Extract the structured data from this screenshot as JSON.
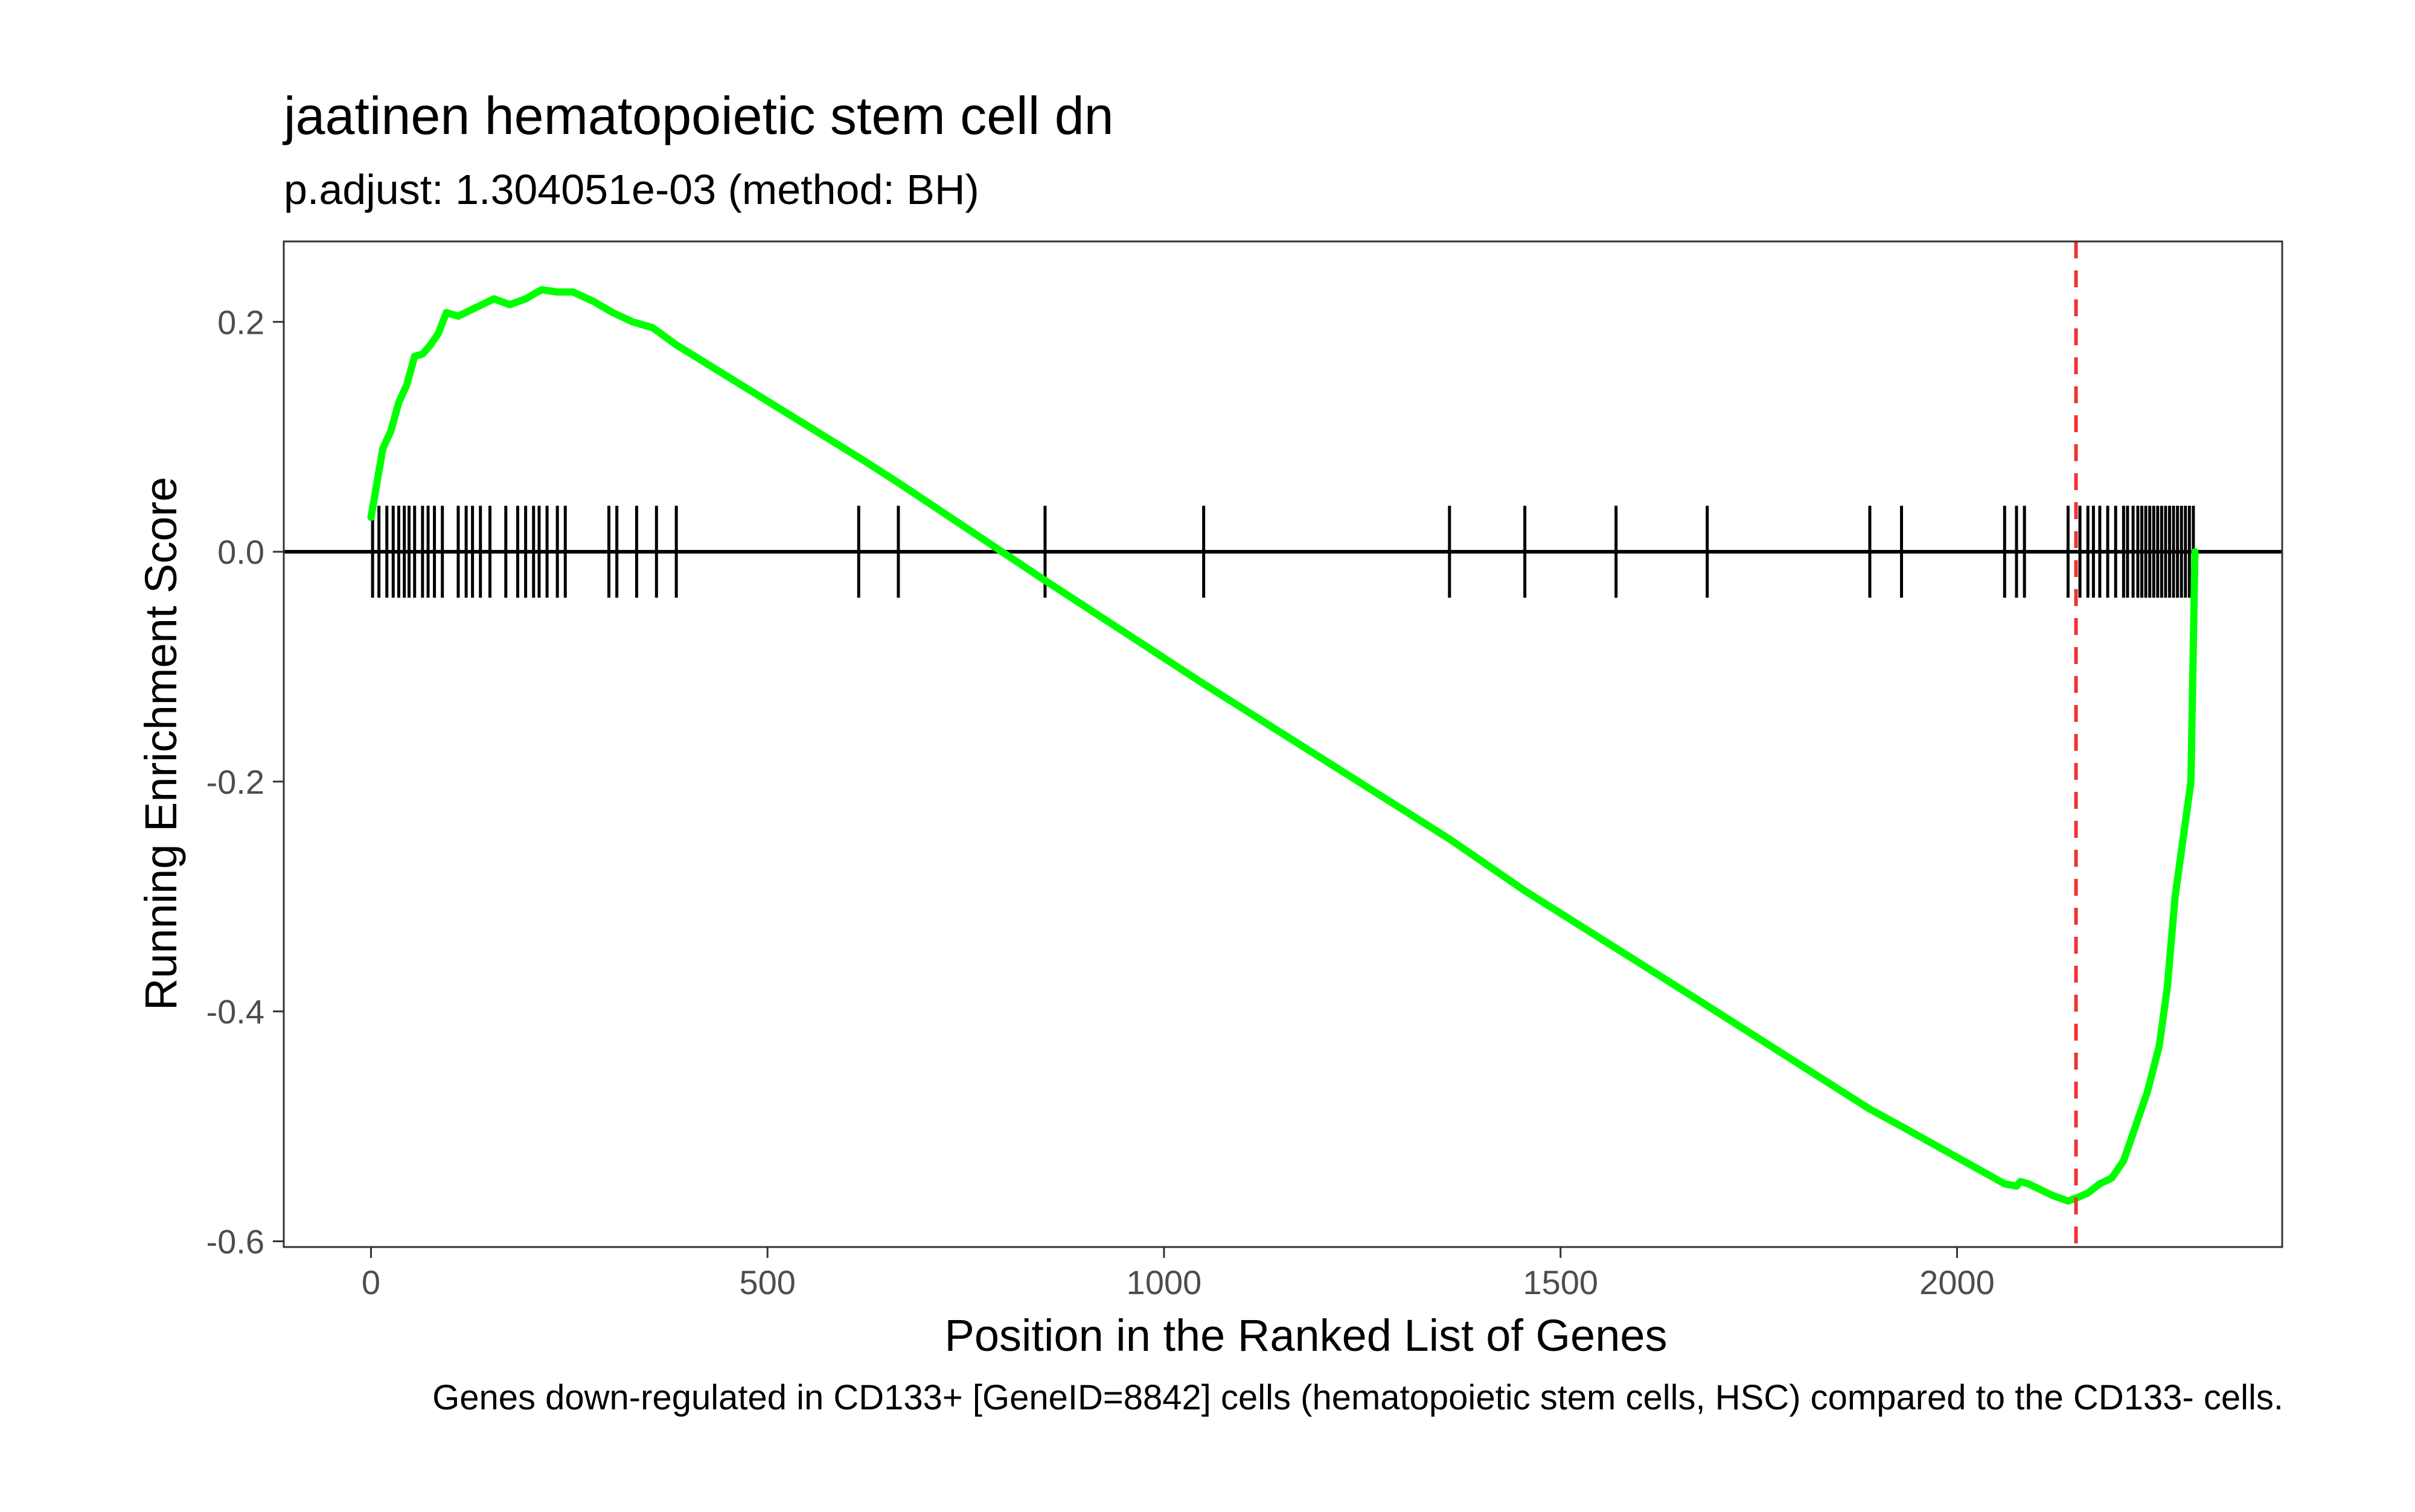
{
  "chart_data": {
    "type": "line",
    "title": "jaatinen hematopoietic stem cell dn",
    "subtitle": "p.adjust: 1.304051e-03 (method: BH)",
    "xlabel": "Position in the Ranked List of Genes",
    "ylabel": "Running Enrichment Score",
    "caption": "Genes down-regulated in CD133+ [GeneID=8842] cells (hematopoietic stem cells, HSC) compared to the CD133- cells.",
    "xlim": [
      -110,
      2410
    ],
    "ylim": [
      -0.605,
      0.27
    ],
    "x_ticks": [
      0,
      500,
      1000,
      1500,
      2000
    ],
    "x_tick_labels": [
      "0",
      "500",
      "1000",
      "1500",
      "2000"
    ],
    "y_ticks": [
      0.2,
      0.0,
      -0.2,
      -0.4,
      -0.6
    ],
    "y_tick_labels": [
      "0.2",
      "0.0",
      "-0.2",
      "-0.4",
      "-0.6"
    ],
    "grid": false,
    "colors": {
      "curve": "#00ff00",
      "hits": "#000000",
      "zero_line": "#000000",
      "max_deviation_line": "#ee3333",
      "panel_border": "#333333",
      "text": "#000000",
      "tick_text": "#4d4d4d"
    },
    "running_score": {
      "name": "",
      "points": [
        [
          0,
          0.03
        ],
        [
          5,
          0.05
        ],
        [
          10,
          0.07
        ],
        [
          15,
          0.09
        ],
        [
          25,
          0.105
        ],
        [
          35,
          0.13
        ],
        [
          45,
          0.145
        ],
        [
          55,
          0.17
        ],
        [
          65,
          0.172
        ],
        [
          75,
          0.18
        ],
        [
          85,
          0.19
        ],
        [
          95,
          0.208
        ],
        [
          110,
          0.205
        ],
        [
          125,
          0.21
        ],
        [
          140,
          0.215
        ],
        [
          155,
          0.22
        ],
        [
          175,
          0.215
        ],
        [
          195,
          0.22
        ],
        [
          215,
          0.228
        ],
        [
          235,
          0.226
        ],
        [
          255,
          0.226
        ],
        [
          280,
          0.218
        ],
        [
          305,
          0.208
        ],
        [
          330,
          0.2
        ],
        [
          355,
          0.195
        ],
        [
          385,
          0.18
        ],
        [
          620,
          0.08
        ],
        [
          665,
          0.06
        ],
        [
          850,
          -0.025
        ],
        [
          1050,
          -0.115
        ],
        [
          1360,
          -0.25
        ],
        [
          1455,
          -0.295
        ],
        [
          1570,
          -0.345
        ],
        [
          1685,
          -0.395
        ],
        [
          1890,
          -0.485
        ],
        [
          1930,
          -0.5
        ],
        [
          2060,
          -0.55
        ],
        [
          2075,
          -0.552
        ],
        [
          2080,
          -0.548
        ],
        [
          2090,
          -0.55
        ],
        [
          2120,
          -0.56
        ],
        [
          2140,
          -0.565
        ],
        [
          2152,
          -0.562
        ],
        [
          2165,
          -0.558
        ],
        [
          2180,
          -0.55
        ],
        [
          2195,
          -0.545
        ],
        [
          2210,
          -0.53
        ],
        [
          2225,
          -0.5
        ],
        [
          2240,
          -0.47
        ],
        [
          2255,
          -0.43
        ],
        [
          2265,
          -0.38
        ],
        [
          2275,
          -0.3
        ],
        [
          2285,
          -0.25
        ],
        [
          2295,
          -0.2
        ],
        [
          2300,
          0.0
        ]
      ]
    },
    "hit_positions": [
      2,
      10,
      20,
      28,
      35,
      42,
      48,
      55,
      65,
      72,
      80,
      90,
      110,
      120,
      128,
      138,
      150,
      170,
      185,
      195,
      205,
      212,
      222,
      235,
      245,
      300,
      310,
      335,
      360,
      385,
      615,
      665,
      850,
      1050,
      1360,
      1455,
      1570,
      1685,
      1890,
      1930,
      2060,
      2075,
      2085,
      2140,
      2155,
      2165,
      2172,
      2180,
      2190,
      2200,
      2210,
      2215,
      2222,
      2228,
      2233,
      2238,
      2243,
      2248,
      2253,
      2258,
      2263,
      2268,
      2273,
      2278,
      2283,
      2288,
      2293,
      2298
    ],
    "max_deviation_position": 2150
  }
}
